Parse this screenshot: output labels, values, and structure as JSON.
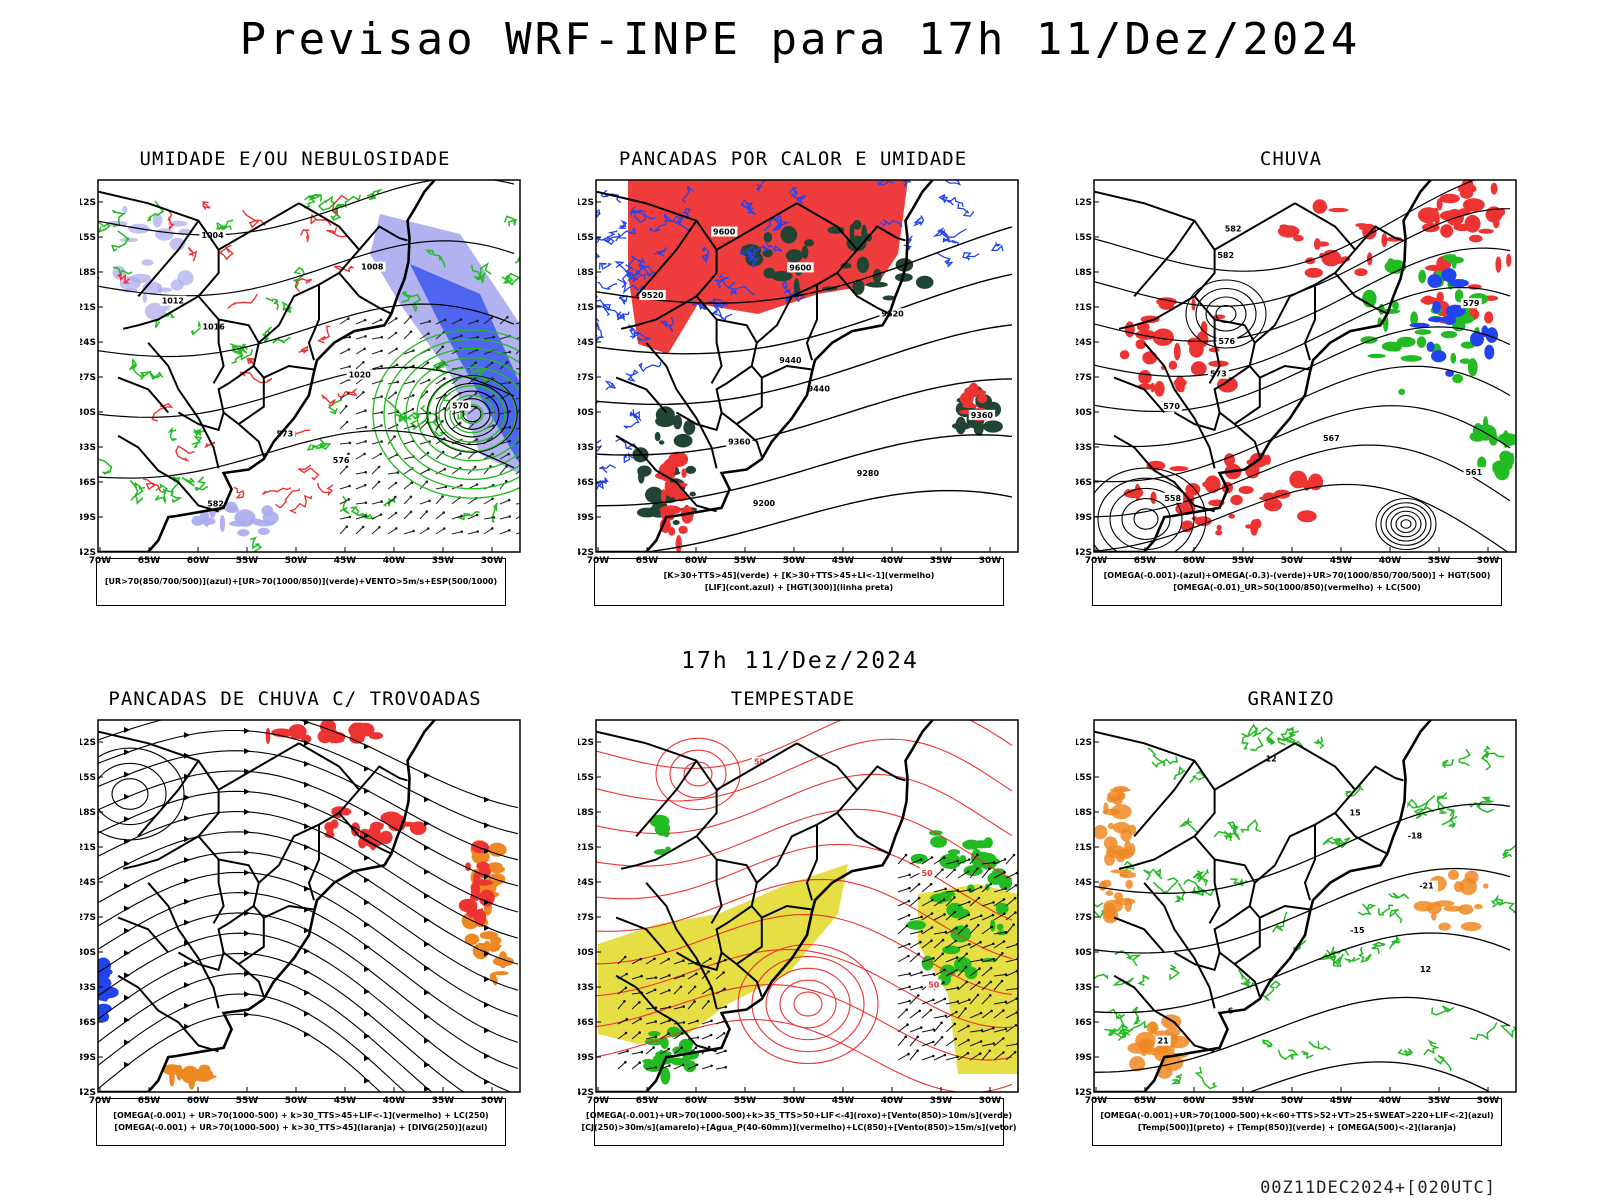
{
  "title": "Previsao WRF-INPE  para 17h 11/Dez/2024",
  "mid_title": "17h 11/Dez/2024",
  "footer": "00Z11DEC2024+[020UTC]",
  "lat_labels": [
    "12S",
    "15S",
    "18S",
    "21S",
    "24S",
    "27S",
    "30S",
    "33S",
    "36S",
    "39S",
    "42S"
  ],
  "lon_labels": [
    "70W",
    "65W",
    "60W",
    "55W",
    "50W",
    "45W",
    "40W",
    "35W",
    "30W"
  ],
  "colors": {
    "green": "#22bb22",
    "red": "#ee3333",
    "blue": "#2244ee",
    "lightblue": "#aaaaee",
    "darkgreen": "#224433",
    "yellow": "#e4dc3a",
    "orange": "#ee8822"
  },
  "panels": [
    {
      "id": "umidade",
      "title": "UMIDADE E/OU NEBULOSIDADE",
      "legend": [
        "[UR>70(850/700/500)](azul)+[UR>70(1000/850)](verde)+VENTO>5m/s+ESP(500/1000)"
      ],
      "contour_labels": [
        "1004",
        "1008",
        "1012",
        "1016",
        "1020",
        "570",
        "573",
        "576",
        "582"
      ]
    },
    {
      "id": "pancadas-calor",
      "title": "PANCADAS POR CALOR E UMIDADE",
      "legend": [
        "[K>30+TTS>45](verde) + [K>30+TTS>45+LI<-1](vermelho)",
        "[LIF](cont.azul) + [HGT(300)](linha preta)"
      ],
      "contour_labels": [
        "9600",
        "9600",
        "9520",
        "9520",
        "9440",
        "9440",
        "9360",
        "9360",
        "9280",
        "9200"
      ]
    },
    {
      "id": "chuva",
      "title": "CHUVA",
      "legend": [
        "[OMEGA(-0.001)-(azul)+OMEGA(-0.3)-(verde)+UR>70(1000/850/700/500)] + HGT(500)",
        "[OMEGA(-0.01)_UR>50(1000/850)(vermelho) + LC(500)"
      ],
      "contour_labels": [
        "582",
        "582",
        "579",
        "576",
        "573",
        "570",
        "567",
        "561",
        "558"
      ]
    },
    {
      "id": "trovoadas",
      "title": "PANCADAS DE CHUVA C/ TROVOADAS",
      "legend": [
        "[OMEGA(-0.001) + UR>70(1000-500) + k>30_TTS>45+LIF<-1](vermelho) + LC(250)",
        "[OMEGA(-0.001) + UR>70(1000-500) + k>30_TTS>45](laranja) + [DIVG(250)](azul)"
      ],
      "contour_labels": []
    },
    {
      "id": "tempestade",
      "title": "TEMPESTADE",
      "legend": [
        "[OMEGA(-0.001)+UR>70(1000-500)+k>35_TTS>50+LIF<-4](roxo)+[Vento(850)>10m/s](verde)",
        "[CJ(250)>30m/s](amarelo)+[Agua_P(40-60mm)](vermelho)+LC(850)+[Vento(850)>15m/s](vetor)"
      ],
      "contour_labels": [
        "50",
        "50",
        "50"
      ]
    },
    {
      "id": "granizo",
      "title": "GRANIZO",
      "legend": [
        "[OMEGA(-0.001)+UR>70(1000-500)+k<60+TTS>52+VT>25+SWEAT>220+LIF<-2](azul)",
        "[Temp(500)](preto) + [Temp(850)](verde) + [OMEGA(500)<-2](laranja)"
      ],
      "contour_labels": [
        "12",
        "15",
        "-18",
        "-21",
        "-15",
        "12",
        "6",
        "21"
      ]
    }
  ]
}
